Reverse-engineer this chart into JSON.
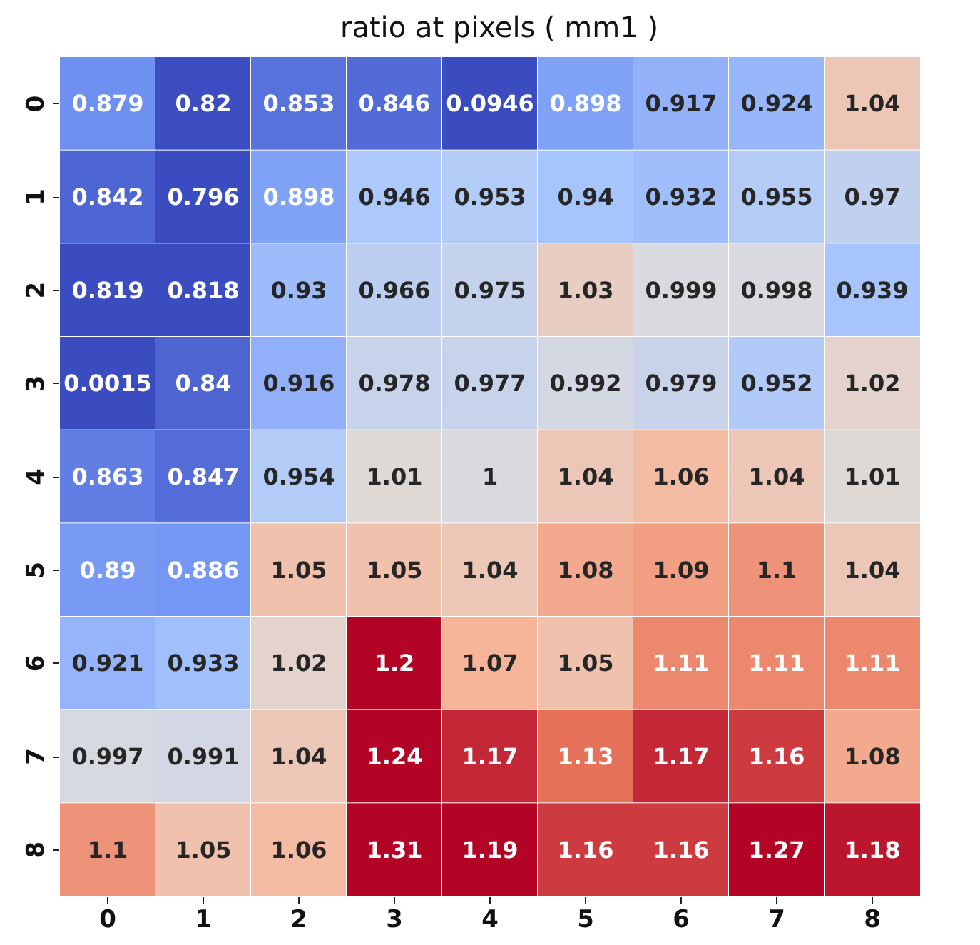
{
  "chart_data": {
    "type": "heatmap",
    "title": "ratio at pixels ( mm1 )",
    "categories": [
      "0",
      "1",
      "2",
      "3",
      "4",
      "5",
      "6",
      "7",
      "8"
    ],
    "y_categories": [
      "0",
      "1",
      "2",
      "3",
      "4",
      "5",
      "6",
      "7",
      "8"
    ],
    "cells": [
      [
        0.879,
        0.82,
        0.853,
        0.846,
        0.0946,
        0.898,
        0.917,
        0.924,
        1.04
      ],
      [
        0.842,
        0.796,
        0.898,
        0.946,
        0.953,
        0.94,
        0.932,
        0.955,
        0.97
      ],
      [
        0.819,
        0.818,
        0.93,
        0.966,
        0.975,
        1.03,
        0.999,
        0.998,
        0.939
      ],
      [
        0.0015,
        0.84,
        0.916,
        0.978,
        0.977,
        0.992,
        0.979,
        0.952,
        1.02
      ],
      [
        0.863,
        0.847,
        0.954,
        1.01,
        1,
        1.04,
        1.06,
        1.04,
        1.01
      ],
      [
        0.89,
        0.886,
        1.05,
        1.05,
        1.04,
        1.08,
        1.09,
        1.1,
        1.04
      ],
      [
        0.921,
        0.933,
        1.02,
        1.2,
        1.07,
        1.05,
        1.11,
        1.11,
        1.11
      ],
      [
        0.997,
        0.991,
        1.04,
        1.24,
        1.17,
        1.13,
        1.17,
        1.16,
        1.08
      ],
      [
        1.1,
        1.05,
        1.06,
        1.31,
        1.19,
        1.16,
        1.16,
        1.27,
        1.18
      ]
    ],
    "data_labels": true
  }
}
